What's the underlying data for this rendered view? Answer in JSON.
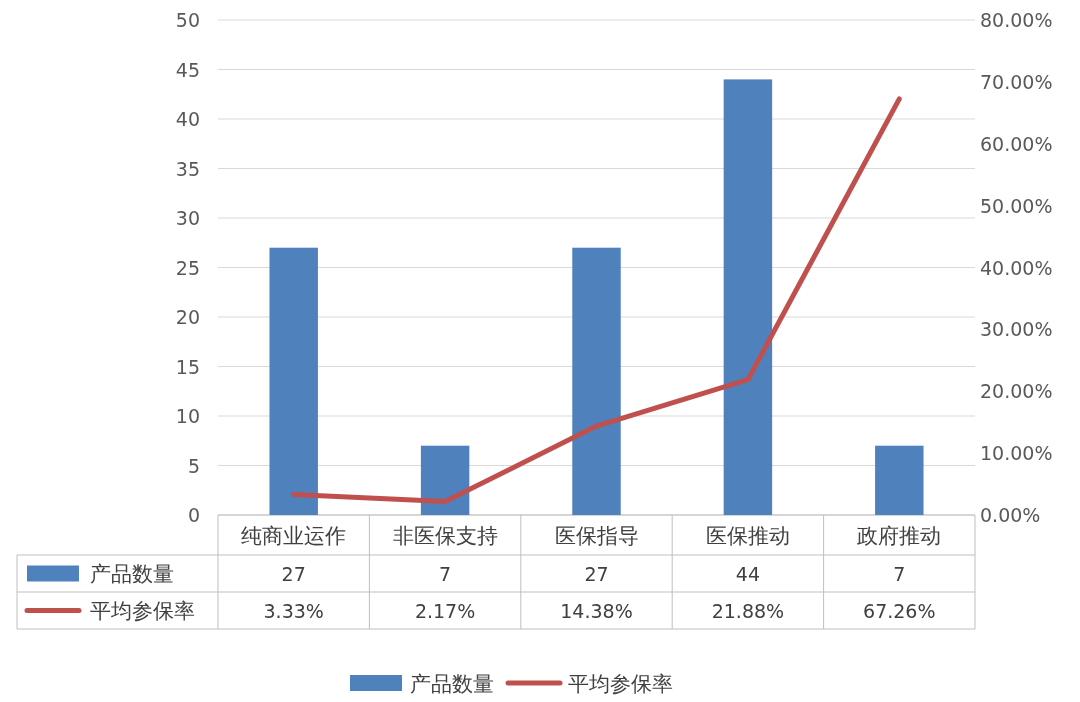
{
  "chart_data": {
    "type": "bar",
    "categories": [
      "纯商业运作",
      "非医保支持",
      "医保指导",
      "医保推动",
      "政府推动"
    ],
    "series": [
      {
        "name": "产品数量",
        "color": "#4f81bd",
        "values": [
          27,
          7,
          27,
          44,
          7
        ],
        "value_labels": [
          "27",
          "7",
          "27",
          "44",
          "7"
        ]
      },
      {
        "name": "平均参保率",
        "type": "line",
        "axis": "y2",
        "color": "#c0504d",
        "values": [
          3.33,
          2.17,
          14.38,
          21.88,
          67.26
        ],
        "value_labels": [
          "3.33%",
          "2.17%",
          "14.38%",
          "21.88%",
          "67.26%"
        ]
      }
    ],
    "ylim": [
      0,
      50
    ],
    "yticks": [
      0,
      5,
      10,
      15,
      20,
      25,
      30,
      35,
      40,
      45,
      50
    ],
    "y2lim": [
      0,
      80
    ],
    "y2ticks": [
      {
        "value": 0,
        "label": "0.00%"
      },
      {
        "value": 10,
        "label": "10.00%"
      },
      {
        "value": 20,
        "label": "20.00%"
      },
      {
        "value": 30,
        "label": "30.00%"
      },
      {
        "value": 40,
        "label": "40.00%"
      },
      {
        "value": 50,
        "label": "50.00%"
      },
      {
        "value": 60,
        "label": "60.00%"
      },
      {
        "value": 70,
        "label": "70.00%"
      },
      {
        "value": 80,
        "label": "80.00%"
      }
    ],
    "grid": "y",
    "legend": "bottom",
    "marker": "none",
    "line_style": "solid"
  }
}
